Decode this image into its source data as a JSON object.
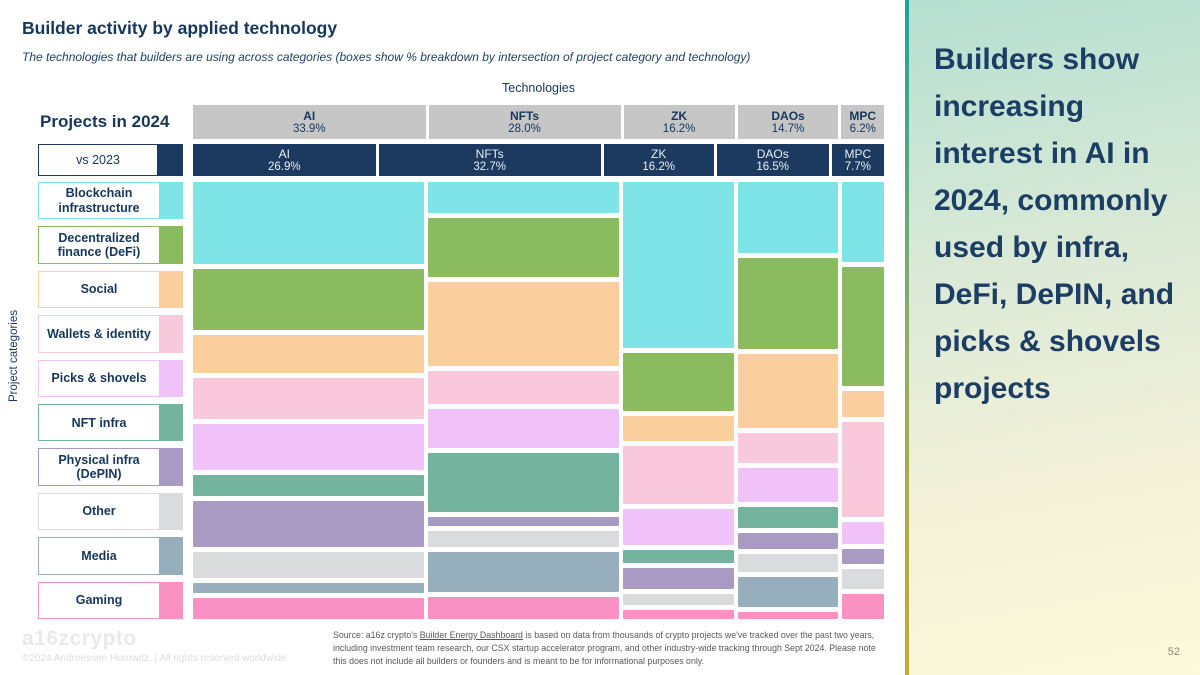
{
  "slide": {
    "title": "Builder activity by applied technology",
    "subtitle": "The technologies that builders are using across categories (boxes show % breakdown by intersection of project category and technology)",
    "tech_axis_label": "Technologies",
    "category_axis_label": "Project categories",
    "projects_2024_label": "Projects in 2024",
    "vs_2023_label": "vs 2023",
    "source": {
      "prefix": "Source: a16z crypto's ",
      "link_text": "Builder Energy Dashboard",
      "suffix": " is based on data from thousands of crypto projects we've tracked over the past two years, including investment team research, our CSX startup accelerator program, and other industry-wide tracking through Sept 2024. Please note this does not include all builders or founders and is meant to be for informational purposes only."
    },
    "footer": {
      "logo_text": "a16zcrypto",
      "copyright": "©2024 Andreessen Horowitz.  |  All rights reserved worldwide."
    },
    "right_panel": {
      "headline": "Builders show increasing interest in AI in 2024, commonly used by infra, DeFi, DePIN, and picks & shovels projects",
      "page_number": "52"
    }
  },
  "colors": {
    "navy_text": "#16365C",
    "header_gray_bg": "#C6C6C6",
    "header_navy_bg": "#1C3A5F",
    "panel_border_top": "#17A49E",
    "panel_border_bottom": "#C9A92D"
  },
  "chart_data": {
    "type": "bar",
    "variant": "marimekko",
    "title": "Builder activity by applied technology",
    "note": "Column widths = share of 2024 projects per technology; navy row = 2023 shares; box heights = % breakdown of each technology column across project categories (estimated from pixels)",
    "technologies": [
      {
        "name": "AI",
        "label_2024": "33.9%",
        "label_2023": "26.9%",
        "width_2024": 33.9,
        "width_2023": 26.9
      },
      {
        "name": "NFTs",
        "label_2024": "28.0%",
        "label_2023": "32.7%",
        "width_2024": 28.0,
        "width_2023": 32.7
      },
      {
        "name": "ZK",
        "label_2024": "16.2%",
        "label_2023": "16.2%",
        "width_2024": 16.2,
        "width_2023": 16.2
      },
      {
        "name": "DAOs",
        "label_2024": "14.7%",
        "label_2023": "16.5%",
        "width_2024": 14.7,
        "width_2023": 16.5
      },
      {
        "name": "MPC",
        "label_2024": "6.2%",
        "label_2023": "7.7%",
        "width_2024": 6.2,
        "width_2023": 7.7
      }
    ],
    "categories": [
      {
        "label": "Blockchain infrastructure",
        "color": "#7EE4E7",
        "heights": [
          21.0,
          7.8,
          41.8,
          18.2,
          19.9
        ]
      },
      {
        "label": "Decentralized finance (DeFi)",
        "color": "#8BBB5F",
        "heights": [
          15.5,
          15.1,
          14.6,
          23.2,
          29.7
        ]
      },
      {
        "label": "Social",
        "color": "#FBCF9D",
        "heights": [
          9.7,
          21.4,
          6.3,
          18.7,
          6.3
        ]
      },
      {
        "label": "Wallets & identity",
        "color": "#FAC8DB",
        "heights": [
          10.3,
          8.4,
          14.6,
          7.7,
          23.6
        ]
      },
      {
        "label": "Picks & shovels",
        "color": "#F0C2F9",
        "heights": [
          11.8,
          9.9,
          9.0,
          8.7,
          5.5
        ]
      },
      {
        "label": "NFT infra",
        "color": "#74B39D",
        "heights": [
          5.3,
          15.1,
          3.4,
          5.5,
          0
        ]
      },
      {
        "label": "Physical infra (DePIN)",
        "color": "#A89AC2",
        "heights": [
          11.8,
          2.3,
          5.3,
          4.0,
          3.7
        ]
      },
      {
        "label": "Other",
        "color": "#D9DBDD",
        "heights": [
          6.6,
          4.2,
          2.6,
          4.5,
          5.0
        ]
      },
      {
        "label": "Media",
        "color": "#97AEBD",
        "heights": [
          2.6,
          10.2,
          0,
          7.7,
          0
        ]
      },
      {
        "label": "Gaming",
        "color": "#F992C3",
        "heights": [
          5.3,
          5.5,
          2.4,
          1.8,
          6.3
        ]
      }
    ]
  }
}
